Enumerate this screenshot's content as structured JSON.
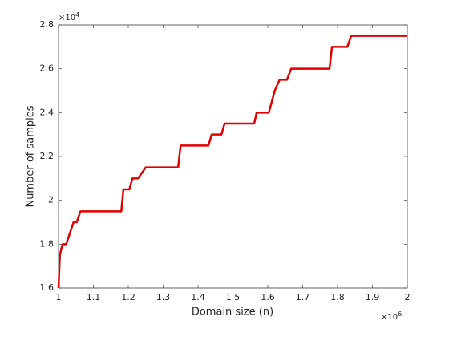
{
  "chart_data": {
    "type": "line",
    "xlabel": "Domain size (n)",
    "ylabel": "Number of samples",
    "x_multiplier": {
      "base": "×10",
      "power": "6"
    },
    "y_multiplier": {
      "base": "×10",
      "power": "4"
    },
    "x": [
      1,
      1.004,
      1.008,
      1.012,
      1.022,
      1.043,
      1.052,
      1.063,
      1.18,
      1.186,
      1.203,
      1.212,
      1.228,
      1.25,
      1.343,
      1.35,
      1.43,
      1.439,
      1.467,
      1.476,
      1.561,
      1.568,
      1.603,
      1.62,
      1.634,
      1.655,
      1.667,
      1.777,
      1.784,
      1.828,
      1.839,
      2
    ],
    "series": [
      {
        "color": "#e00000",
        "values": [
          1.6,
          1.75,
          1.78,
          1.8,
          1.8,
          1.9,
          1.9,
          1.95,
          1.95,
          2.05,
          2.05,
          2.1,
          2.1,
          2.15,
          2.15,
          2.25,
          2.25,
          2.3,
          2.3,
          2.35,
          2.35,
          2.4,
          2.4,
          2.5,
          2.55,
          2.55,
          2.6,
          2.6,
          2.7,
          2.7,
          2.75,
          2.75
        ]
      }
    ],
    "xlim": [
      1,
      2
    ],
    "xticks": [
      1,
      1.1,
      1.2,
      1.3,
      1.4,
      1.5,
      1.6,
      1.7,
      1.8,
      1.9,
      2
    ],
    "ylim": [
      1.6,
      2.8
    ],
    "yticks": [
      1.6,
      1.8,
      2,
      2.2,
      2.4,
      2.6,
      2.8
    ]
  }
}
